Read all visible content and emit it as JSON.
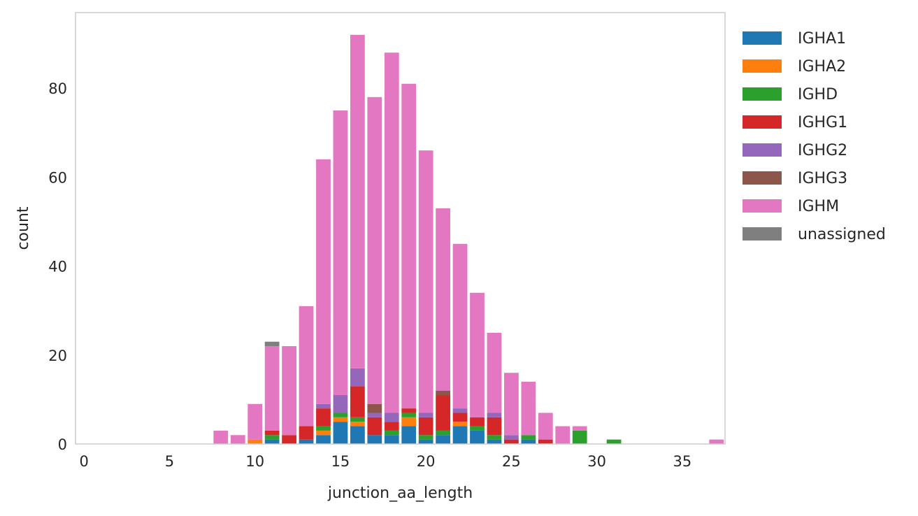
{
  "chart_data": {
    "type": "bar",
    "stacked": true,
    "xlabel": "junction_aa_length",
    "ylabel": "count",
    "xlim": [
      -0.5,
      37.5
    ],
    "ylim": [
      0,
      97
    ],
    "x_ticks": [
      0,
      5,
      10,
      15,
      20,
      25,
      30,
      35
    ],
    "y_ticks": [
      0,
      20,
      40,
      60,
      80
    ],
    "grid": false,
    "legend_position": "outside-right",
    "x": [
      8,
      9,
      10,
      11,
      12,
      13,
      14,
      15,
      16,
      17,
      18,
      19,
      20,
      21,
      22,
      23,
      24,
      25,
      26,
      27,
      28,
      29,
      31,
      37
    ],
    "series": [
      {
        "name": "IGHA1",
        "color": "#1f77b4",
        "values": [
          0,
          0,
          0,
          1,
          0,
          1,
          2,
          5,
          4,
          2,
          2,
          4,
          1,
          2,
          4,
          3,
          1,
          0,
          1,
          0,
          0,
          0,
          0,
          0
        ]
      },
      {
        "name": "IGHA2",
        "color": "#ff7f0e",
        "values": [
          0,
          0,
          1,
          0,
          0,
          0,
          1,
          1,
          1,
          0,
          0,
          2,
          0,
          0,
          1,
          0,
          0,
          0,
          0,
          0,
          0,
          0,
          0,
          0
        ]
      },
      {
        "name": "IGHD",
        "color": "#2ca02c",
        "values": [
          0,
          0,
          0,
          1,
          0,
          0,
          1,
          1,
          1,
          0,
          1,
          1,
          1,
          1,
          0,
          1,
          1,
          0,
          1,
          0,
          0,
          3,
          1,
          0
        ]
      },
      {
        "name": "IGHG1",
        "color": "#d62728",
        "values": [
          0,
          0,
          0,
          1,
          2,
          3,
          4,
          0,
          7,
          4,
          2,
          1,
          4,
          8,
          2,
          2,
          4,
          1,
          0,
          1,
          0,
          0,
          0,
          0
        ]
      },
      {
        "name": "IGHG2",
        "color": "#9467bd",
        "values": [
          0,
          0,
          0,
          0,
          0,
          0,
          1,
          4,
          4,
          1,
          2,
          0,
          1,
          0,
          1,
          0,
          1,
          1,
          0,
          0,
          0,
          0,
          0,
          0
        ]
      },
      {
        "name": "IGHG3",
        "color": "#8c564b",
        "values": [
          0,
          0,
          0,
          0,
          0,
          0,
          0,
          0,
          0,
          2,
          0,
          0,
          0,
          1,
          0,
          0,
          0,
          0,
          0,
          0,
          0,
          0,
          0,
          0
        ]
      },
      {
        "name": "IGHM",
        "color": "#e377c2",
        "values": [
          3,
          2,
          8,
          19,
          20,
          27,
          55,
          64,
          75,
          69,
          81,
          73,
          59,
          41,
          37,
          28,
          18,
          14,
          12,
          6,
          4,
          1,
          0,
          1
        ]
      },
      {
        "name": "unassigned",
        "color": "#7f7f7f",
        "values": [
          0,
          0,
          0,
          1,
          0,
          0,
          0,
          0,
          0,
          0,
          0,
          0,
          0,
          0,
          0,
          0,
          0,
          0,
          0,
          0,
          0,
          0,
          0,
          0
        ]
      }
    ]
  }
}
